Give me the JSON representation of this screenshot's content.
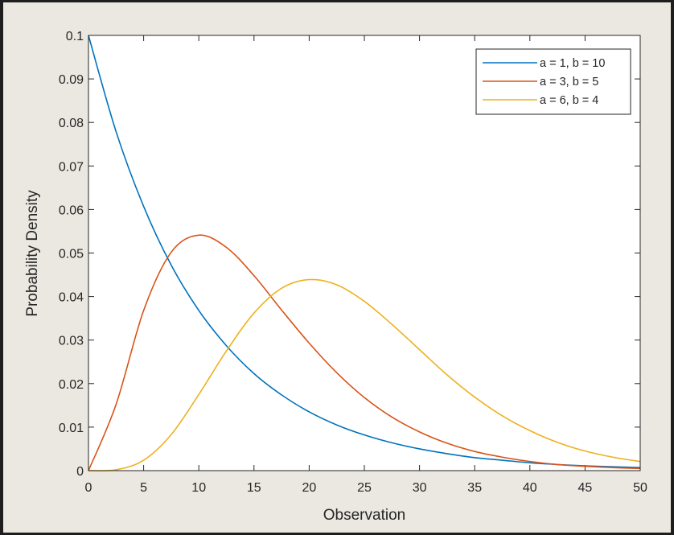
{
  "chart_data": {
    "type": "line",
    "xlabel": "Observation",
    "ylabel": "Probability Density",
    "xlim": [
      0,
      50
    ],
    "ylim": [
      0,
      0.1
    ],
    "x_ticks": [
      "0",
      "5",
      "10",
      "15",
      "20",
      "25",
      "30",
      "35",
      "40",
      "45",
      "50"
    ],
    "y_ticks": [
      "0",
      "0.01",
      "0.02",
      "0.03",
      "0.04",
      "0.05",
      "0.06",
      "0.07",
      "0.08",
      "0.09",
      "0.1"
    ],
    "grid": false,
    "legend_position": "top-right",
    "x": [
      0,
      2.5,
      5,
      7.5,
      10,
      12.5,
      15,
      17.5,
      20,
      22.5,
      25,
      27.5,
      30,
      32.5,
      35,
      37.5,
      40,
      42.5,
      45,
      47.5,
      50
    ],
    "series": [
      {
        "name": "a = 1, b = 10",
        "color": "#0072bd",
        "values": [
          0.1,
          0.0779,
          0.0607,
          0.0472,
          0.0368,
          0.0287,
          0.0223,
          0.0174,
          0.0135,
          0.0105,
          0.0082,
          0.0064,
          0.005,
          0.0039,
          0.003,
          0.0024,
          0.0018,
          0.0014,
          0.0011,
          0.0009,
          0.0007
        ]
      },
      {
        "name": "a = 3, b = 5",
        "color": "#d95319",
        "values": [
          0,
          0.0152,
          0.0368,
          0.0502,
          0.0541,
          0.0513,
          0.0448,
          0.0369,
          0.0293,
          0.0225,
          0.0168,
          0.0123,
          0.0089,
          0.0063,
          0.0044,
          0.0031,
          0.0021,
          0.0014,
          0.001,
          0.0007,
          0.0005
        ]
      },
      {
        "name": "a = 6, b = 4",
        "color": "#edb120",
        "values": [
          0,
          0.0002,
          0.0024,
          0.0083,
          0.0175,
          0.0275,
          0.0362,
          0.0419,
          0.0439,
          0.0427,
          0.0389,
          0.0336,
          0.0278,
          0.022,
          0.0169,
          0.0126,
          0.0092,
          0.0065,
          0.0045,
          0.0031,
          0.0021
        ]
      }
    ]
  }
}
